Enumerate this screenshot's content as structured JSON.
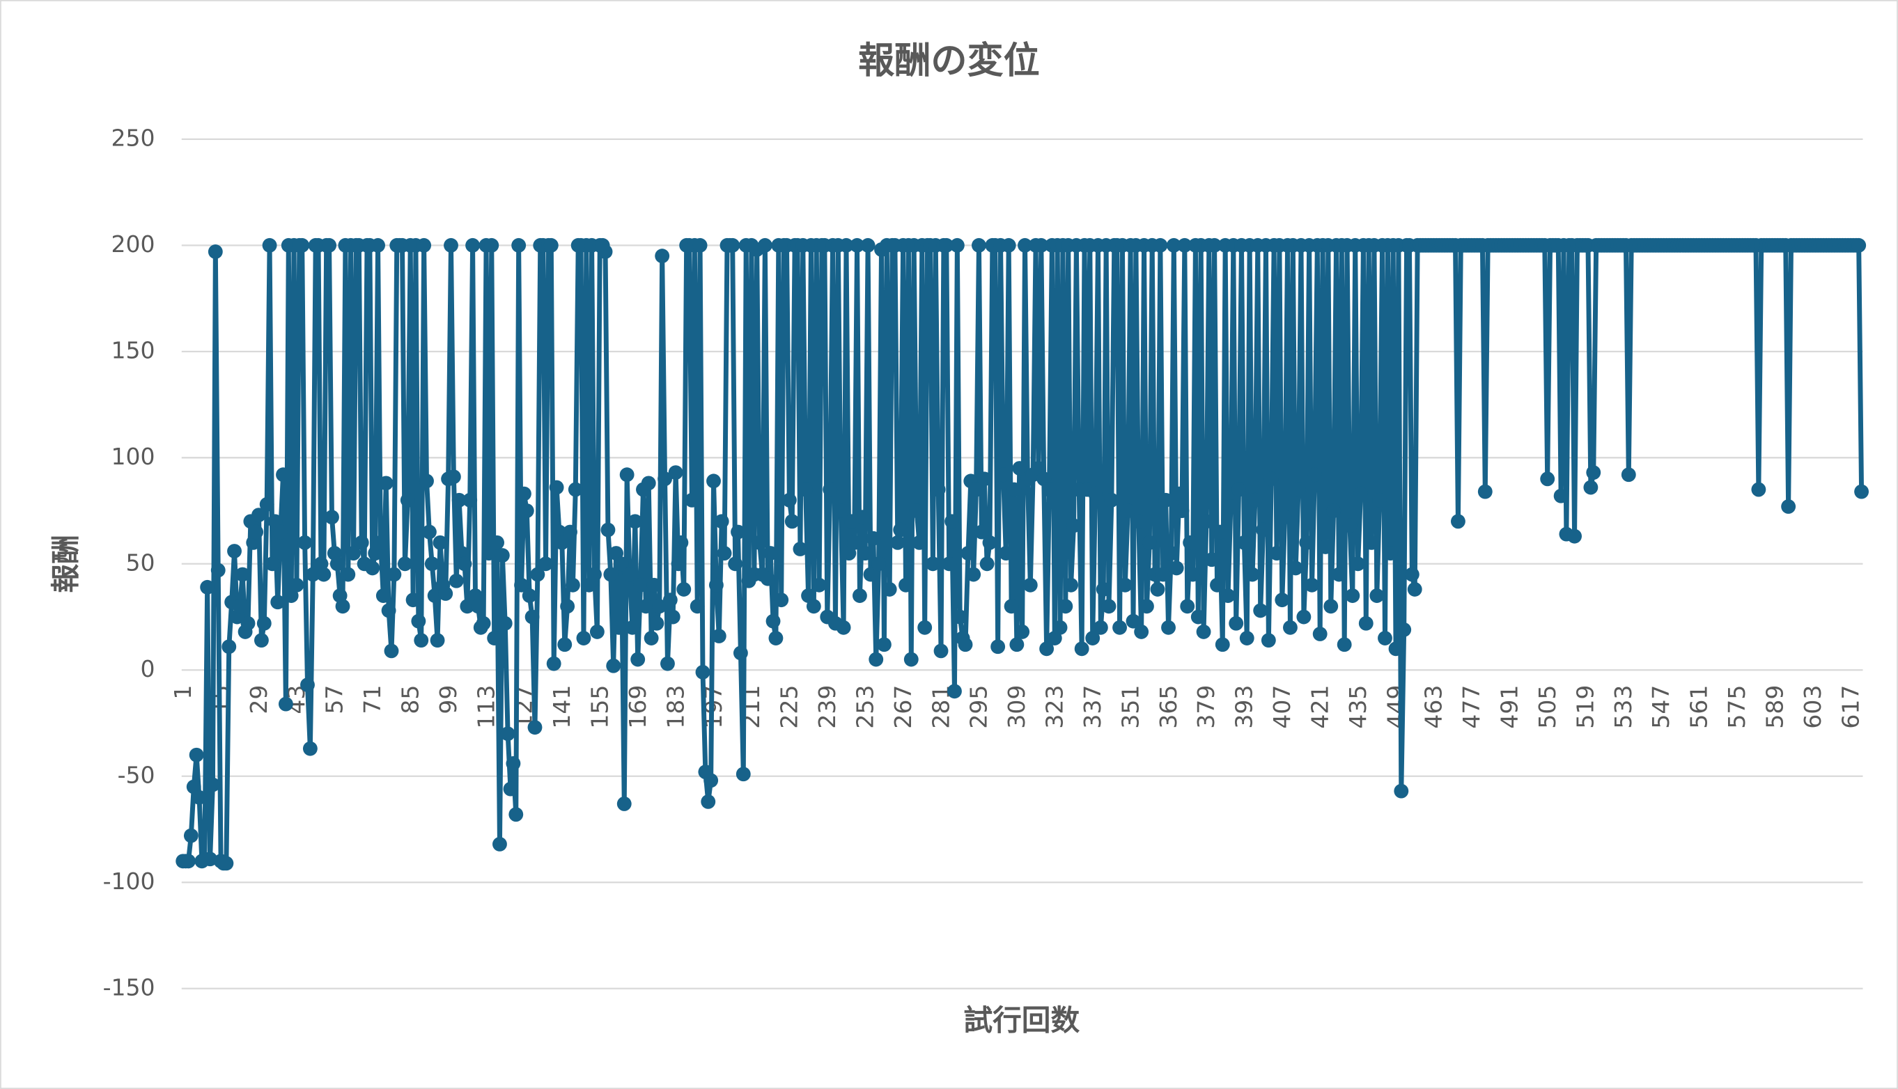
{
  "chart_data": {
    "type": "line",
    "title": "報酬の変位",
    "xlabel": "試行回数",
    "ylabel": "報酬",
    "ylim": [
      -150,
      250
    ],
    "yticks": [
      -150,
      -100,
      -50,
      0,
      50,
      100,
      150,
      200,
      250
    ],
    "grid": true,
    "categories": [
      1,
      null,
      null,
      null,
      null,
      null,
      null,
      null,
      null,
      null,
      null,
      null,
      null,
      null,
      15,
      null,
      null,
      null,
      null,
      null,
      null,
      null,
      null,
      null,
      null,
      null,
      null,
      null,
      29,
      null,
      null,
      null,
      null,
      null,
      null,
      null,
      null,
      null,
      null,
      null,
      null,
      null,
      43,
      null,
      null,
      null,
      null,
      null,
      null,
      null,
      null,
      null,
      null,
      null,
      null,
      null,
      57,
      null,
      null,
      null,
      null,
      null,
      null,
      null,
      null,
      null,
      null,
      null,
      null,
      null,
      71,
      null,
      null,
      null,
      null,
      null,
      null,
      null,
      null,
      null,
      null,
      null,
      null,
      null,
      85,
      null,
      null,
      null,
      null,
      null,
      null,
      null,
      null,
      null,
      null,
      null,
      null,
      null,
      99,
      null,
      null,
      null,
      null,
      null,
      null,
      null,
      null,
      null,
      null,
      null,
      null,
      null,
      113,
      null,
      null,
      null,
      null,
      null,
      null,
      null,
      null,
      null,
      null,
      null,
      null,
      null,
      127,
      null,
      null,
      null,
      null,
      null,
      null,
      null,
      null,
      null,
      null,
      null,
      null,
      null,
      141,
      null,
      null,
      null,
      null,
      null,
      null,
      null,
      null,
      null,
      null,
      null,
      null,
      null,
      155,
      null,
      null,
      null,
      null,
      null,
      null,
      null,
      null,
      null,
      null,
      null,
      null,
      null,
      169,
      null,
      null,
      null,
      null,
      null,
      null,
      null,
      null,
      null,
      null,
      null,
      null,
      null,
      183,
      null,
      null,
      null,
      null,
      null,
      null,
      null,
      null,
      null,
      null,
      null,
      null,
      null,
      197,
      null,
      null,
      null,
      null,
      null,
      null,
      null,
      null,
      null,
      null,
      null,
      null,
      null,
      211,
      null,
      null,
      null,
      null,
      null,
      null,
      null,
      null,
      null,
      null,
      null,
      null,
      null,
      225,
      null,
      null,
      null,
      null,
      null,
      null,
      null,
      null,
      null,
      null,
      null,
      null,
      null,
      239,
      null,
      null,
      null,
      null,
      null,
      null,
      null,
      null,
      null,
      null,
      null,
      null,
      null,
      253,
      null,
      null,
      null,
      null,
      null,
      null,
      null,
      null,
      null,
      null,
      null,
      null,
      null,
      267,
      null,
      null,
      null,
      null,
      null,
      null,
      null,
      null,
      null,
      null,
      null,
      null,
      null,
      281,
      null,
      null,
      null,
      null,
      null,
      null,
      null,
      null,
      null,
      null,
      null,
      null,
      null,
      295,
      null,
      null,
      null,
      null,
      null,
      null,
      null,
      null,
      null,
      null,
      null,
      null,
      null,
      309,
      null,
      null,
      null,
      null,
      null,
      null,
      null,
      null,
      null,
      null,
      null,
      null,
      null,
      323,
      null,
      null,
      null,
      null,
      null,
      null,
      null,
      null,
      null,
      null,
      null,
      null,
      null,
      337,
      null,
      null,
      null,
      null,
      null,
      null,
      null,
      null,
      null,
      null,
      null,
      null,
      null,
      351,
      null,
      null,
      null,
      null,
      null,
      null,
      null,
      null,
      null,
      null,
      null,
      null,
      null,
      365,
      null,
      null,
      null,
      null,
      null,
      null,
      null,
      null,
      null,
      null,
      null,
      null,
      null,
      379,
      null,
      null,
      null,
      null,
      null,
      null,
      null,
      null,
      null,
      null,
      null,
      null,
      null,
      393,
      null,
      null,
      null,
      null,
      null,
      null,
      null,
      null,
      null,
      null,
      null,
      null,
      null,
      407,
      null,
      null,
      null,
      null,
      null,
      null,
      null,
      null,
      null,
      null,
      null,
      null,
      null,
      421,
      null,
      null,
      null,
      null,
      null,
      null,
      null,
      null,
      null,
      null,
      null,
      null,
      null,
      435,
      null,
      null,
      null,
      null,
      null,
      null,
      null,
      null,
      null,
      null,
      null,
      null,
      null,
      449,
      null,
      null,
      null,
      null,
      null,
      null,
      null,
      null,
      null,
      null,
      null,
      null,
      null,
      463,
      null,
      null,
      null,
      null,
      null,
      null,
      null,
      null,
      null,
      null,
      null,
      null,
      null,
      477,
      null,
      null,
      null,
      null,
      null,
      null,
      null,
      null,
      null,
      null,
      null,
      null,
      null,
      491,
      null,
      null,
      null,
      null,
      null,
      null,
      null,
      null,
      null,
      null,
      null,
      null,
      null,
      505,
      null,
      null,
      null,
      null,
      null,
      null,
      null,
      null,
      null,
      null,
      null,
      null,
      null,
      519,
      null,
      null,
      null,
      null,
      null,
      null,
      null,
      null,
      null,
      null,
      null,
      null,
      null,
      533,
      null,
      null,
      null,
      null,
      null,
      null,
      null,
      null,
      null,
      null,
      null,
      null,
      null,
      547,
      null,
      null,
      null,
      null,
      null,
      null,
      null,
      null,
      null,
      null,
      null,
      null,
      null,
      561,
      null,
      null,
      null,
      null,
      null,
      null,
      null,
      null,
      null,
      null,
      null,
      null,
      null,
      575,
      null,
      null,
      null,
      null,
      null,
      null,
      null,
      null,
      null,
      null,
      null,
      null,
      null,
      589,
      null,
      null,
      null,
      null,
      null,
      null,
      null,
      null,
      null,
      null,
      null,
      null,
      null,
      603,
      null,
      null,
      null,
      null,
      null,
      null,
      null,
      null,
      null,
      null,
      null,
      null,
      null,
      617,
      null,
      null,
      null,
      null
    ],
    "series": [
      {
        "name": "報酬",
        "color": "#17628a",
        "values": [
          -90,
          -90,
          -90,
          -78,
          -55,
          -40,
          -60,
          -90,
          -89,
          39,
          -89,
          -54,
          197,
          47,
          -90,
          -91,
          -91,
          11,
          32,
          56,
          25,
          30,
          45,
          18,
          22,
          70,
          60,
          65,
          73,
          14,
          22,
          78,
          200,
          50,
          70,
          32,
          65,
          92,
          -16,
          200,
          35,
          200,
          40,
          200,
          200,
          60,
          -7,
          -37,
          45,
          200,
          200,
          50,
          45,
          200,
          200,
          72,
          55,
          50,
          35,
          30,
          200,
          45,
          200,
          55,
          200,
          200,
          60,
          50,
          200,
          200,
          48,
          55,
          200,
          60,
          35,
          88,
          28,
          9,
          45,
          200,
          200,
          200,
          50,
          80,
          200,
          33,
          200,
          23,
          14,
          200,
          89,
          65,
          50,
          35,
          14,
          60,
          40,
          36,
          90,
          200,
          91,
          42,
          80,
          55,
          50,
          30,
          80,
          200,
          35,
          30,
          20,
          22,
          200,
          55,
          200,
          15,
          60,
          -82,
          54,
          22,
          -30,
          -56,
          -44,
          -68,
          200,
          40,
          83,
          75,
          35,
          25,
          -27,
          45,
          200,
          200,
          50,
          200,
          200,
          3,
          86,
          65,
          60,
          12,
          30,
          65,
          40,
          85,
          200,
          200,
          15,
          200,
          40,
          200,
          45,
          18,
          200,
          200,
          197,
          66,
          45,
          2,
          55,
          20,
          50,
          -63,
          92,
          45,
          20,
          70,
          5,
          40,
          85,
          30,
          88,
          15,
          40,
          22,
          30,
          195,
          90,
          3,
          33,
          25,
          93,
          50,
          60,
          38,
          200,
          200,
          80,
          200,
          30,
          200,
          -1,
          -48,
          -62,
          -52,
          89,
          40,
          16,
          70,
          55,
          200,
          200,
          200,
          50,
          65,
          8,
          -49,
          200,
          42,
          200,
          45,
          198,
          60,
          45,
          200,
          43,
          55,
          23,
          15,
          200,
          33,
          200,
          200,
          80,
          70,
          200,
          200,
          57,
          200,
          85,
          35,
          200,
          30,
          200,
          40,
          200,
          200,
          25,
          85,
          200,
          22,
          200,
          75,
          20,
          200,
          55,
          70,
          60,
          200,
          35,
          72,
          55,
          200,
          45,
          62,
          5,
          50,
          198,
          12,
          200,
          38,
          200,
          200,
          60,
          66,
          200,
          40,
          200,
          5,
          200,
          75,
          60,
          200,
          20,
          200,
          200,
          50,
          200,
          85,
          9,
          200,
          200,
          50,
          70,
          -10,
          200,
          25,
          15,
          12,
          55,
          89,
          45,
          85,
          200,
          65,
          90,
          50,
          60,
          200,
          200,
          11,
          200,
          92,
          55,
          200,
          30,
          85,
          12,
          95,
          18,
          200,
          90,
          40,
          92,
          200,
          95,
          200,
          90,
          10,
          85,
          200,
          15,
          200,
          20,
          200,
          30,
          200,
          40,
          68,
          200,
          85,
          10,
          200,
          85,
          200,
          15,
          83,
          200,
          20,
          38,
          200,
          30,
          80,
          200,
          200,
          20,
          200,
          40,
          75,
          200,
          23,
          200,
          70,
          18,
          200,
          30,
          60,
          200,
          45,
          38,
          200,
          45,
          80,
          20,
          55,
          200,
          48,
          83,
          75,
          200,
          30,
          60,
          45,
          200,
          25,
          200,
          18,
          70,
          200,
          52,
          200,
          40,
          65,
          12,
          200,
          35,
          77,
          200,
          22,
          85,
          200,
          60,
          15,
          200,
          45,
          80,
          200,
          28,
          66,
          200,
          14,
          90,
          200,
          55,
          200,
          33,
          72,
          200,
          20,
          200,
          48,
          85,
          200,
          25,
          60,
          200,
          40,
          92,
          200,
          17,
          200,
          58,
          200,
          30,
          75,
          200,
          45,
          200,
          12,
          200,
          68,
          35,
          200,
          50,
          83,
          200,
          22,
          200,
          60,
          200,
          35,
          80,
          200,
          15,
          200,
          55,
          200,
          10,
          200,
          -57,
          19,
          200,
          200,
          45,
          38,
          200,
          200,
          200,
          200,
          200,
          200,
          200,
          200,
          200,
          200,
          200,
          200,
          200,
          200,
          200,
          70,
          200,
          200,
          200,
          200,
          200,
          200,
          200,
          200,
          200,
          84,
          200,
          200,
          200,
          200,
          200,
          200,
          200,
          200,
          200,
          200,
          200,
          200,
          200,
          200,
          200,
          200,
          200,
          200,
          200,
          200,
          200,
          200,
          90,
          200,
          200,
          200,
          200,
          82,
          200,
          64,
          200,
          200,
          63,
          200,
          200,
          200,
          200,
          200,
          86,
          93,
          200,
          200,
          200,
          200,
          200,
          200,
          200,
          200,
          200,
          200,
          200,
          200,
          92,
          200,
          200,
          200,
          200,
          200,
          200,
          200,
          200,
          200,
          200,
          200,
          200,
          200,
          200,
          200,
          200,
          200,
          200,
          200,
          200,
          200,
          200,
          200,
          200,
          200,
          200,
          200,
          200,
          200,
          200,
          200,
          200,
          200,
          200,
          200,
          200,
          200,
          200,
          200,
          200,
          200,
          200,
          200,
          200,
          200,
          200,
          200,
          85,
          200,
          200,
          200,
          200,
          200,
          200,
          200,
          200,
          200,
          200,
          77,
          200,
          200,
          200,
          200,
          200,
          200,
          200,
          200,
          200,
          200,
          200,
          200,
          200,
          200,
          200,
          200,
          200,
          200,
          200,
          200,
          200,
          200,
          200,
          200,
          200,
          200,
          84
        ]
      }
    ]
  }
}
